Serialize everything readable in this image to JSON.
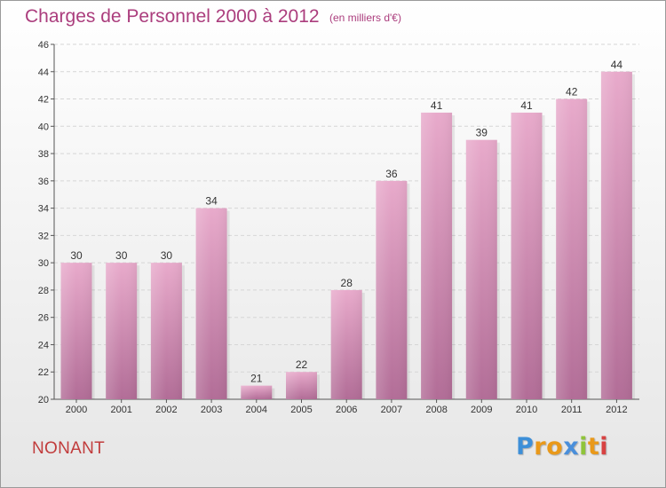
{
  "chart_data": {
    "type": "bar",
    "title": "Charges de Personnel 2000 à 2012",
    "subtitle": "(en milliers d'€)",
    "categories": [
      "2000",
      "2001",
      "2002",
      "2003",
      "2004",
      "2005",
      "2006",
      "2007",
      "2008",
      "2009",
      "2010",
      "2011",
      "2012"
    ],
    "values": [
      30,
      30,
      30,
      34,
      21,
      22,
      28,
      36,
      41,
      39,
      41,
      42,
      44
    ],
    "ylim": [
      20,
      46
    ],
    "yticks": [
      20,
      22,
      24,
      26,
      28,
      30,
      32,
      34,
      36,
      38,
      40,
      42,
      44,
      46
    ],
    "grid": true,
    "xlabel": "",
    "ylabel": "",
    "colors": {
      "bar_light": "#e8aacb",
      "bar_dark": "#b26d97",
      "title": "#ab3d7d"
    }
  },
  "footer": {
    "commune": "NONANT",
    "logo_letters": [
      "P",
      "r",
      "o",
      "x",
      "i",
      "t",
      "i"
    ]
  }
}
